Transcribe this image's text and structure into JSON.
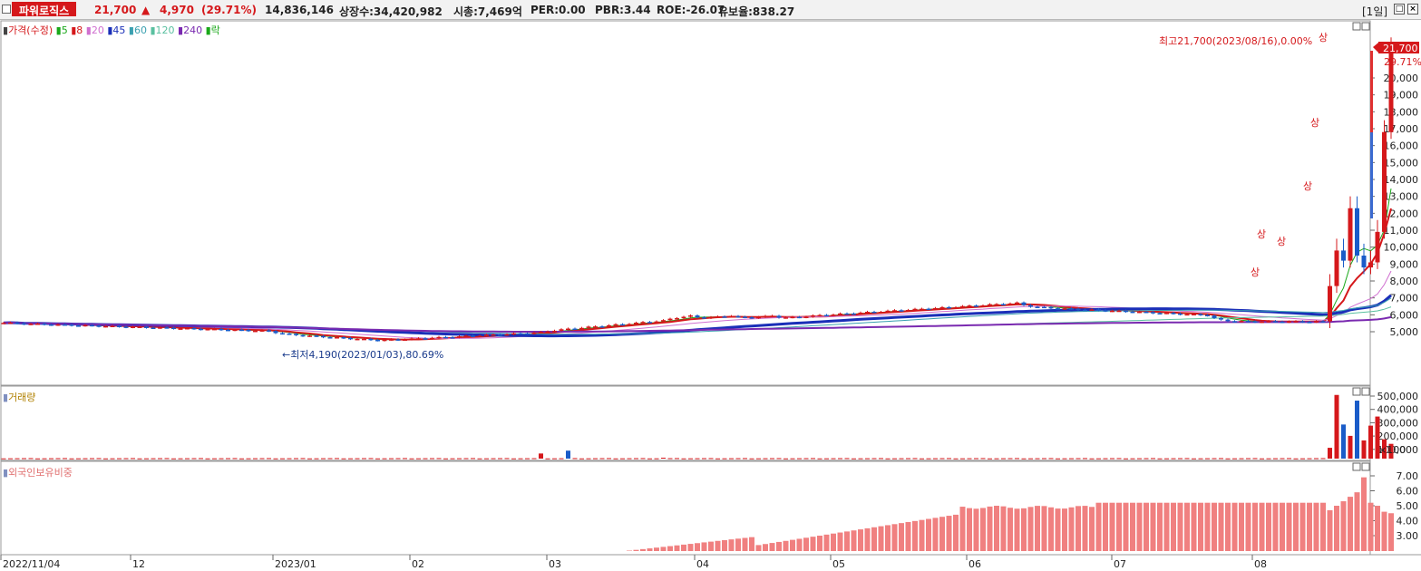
{
  "header": {
    "stock_name": "파워로직스",
    "price": "21,700",
    "arrow": "▲",
    "change": "4,970",
    "change_pct": "(29.71%)",
    "volume": "14,836,146",
    "listed_shares": "상장수:34,420,982",
    "market_cap": "시총:7,469억",
    "per": "PER:0.00",
    "pbr": "PBR:3.44",
    "roe": "ROE:-26.07",
    "float_ratio": "유보율:838.27",
    "period": "[1일]"
  },
  "price_panel": {
    "legend": {
      "price_label": "가격(수정)",
      "ma": [
        "5",
        "8",
        "20",
        "45",
        "60",
        "120",
        "240"
      ],
      "fall_label": "락"
    },
    "high_annotation": "최고21,700(2023/08/16),0.00%",
    "low_annotation": "←최저4,190(2023/01/03),80.69%",
    "limit_up_marker": "상",
    "current_price_label": "21,700",
    "current_pct_label": "29.71%",
    "y_ticks": [
      "20,000",
      "19,000",
      "18,000",
      "17,000",
      "16,000",
      "15,000",
      "14,000",
      "13,000",
      "12,000",
      "11,000",
      "10,000",
      "9,000",
      "8,000",
      "7,000",
      "6,000",
      "5,000"
    ]
  },
  "volume_panel": {
    "title": "거래량",
    "y_ticks": [
      "500,000",
      "400,000",
      "300,000",
      "200,000",
      "100,000"
    ],
    "unit": "×100"
  },
  "foreign_panel": {
    "title": "외국인보유비중",
    "y_ticks": [
      "7.00",
      "6.00",
      "5.00",
      "4.00",
      "3.00"
    ]
  },
  "x_axis": {
    "labels": [
      "2022/11/04",
      "12",
      "2023/01",
      "02",
      "03",
      "04",
      "05",
      "06",
      "07",
      "08"
    ]
  },
  "colors": {
    "up": "#d5181b",
    "down": "#1a5cc8",
    "foreign_bar": "#f08080"
  }
}
